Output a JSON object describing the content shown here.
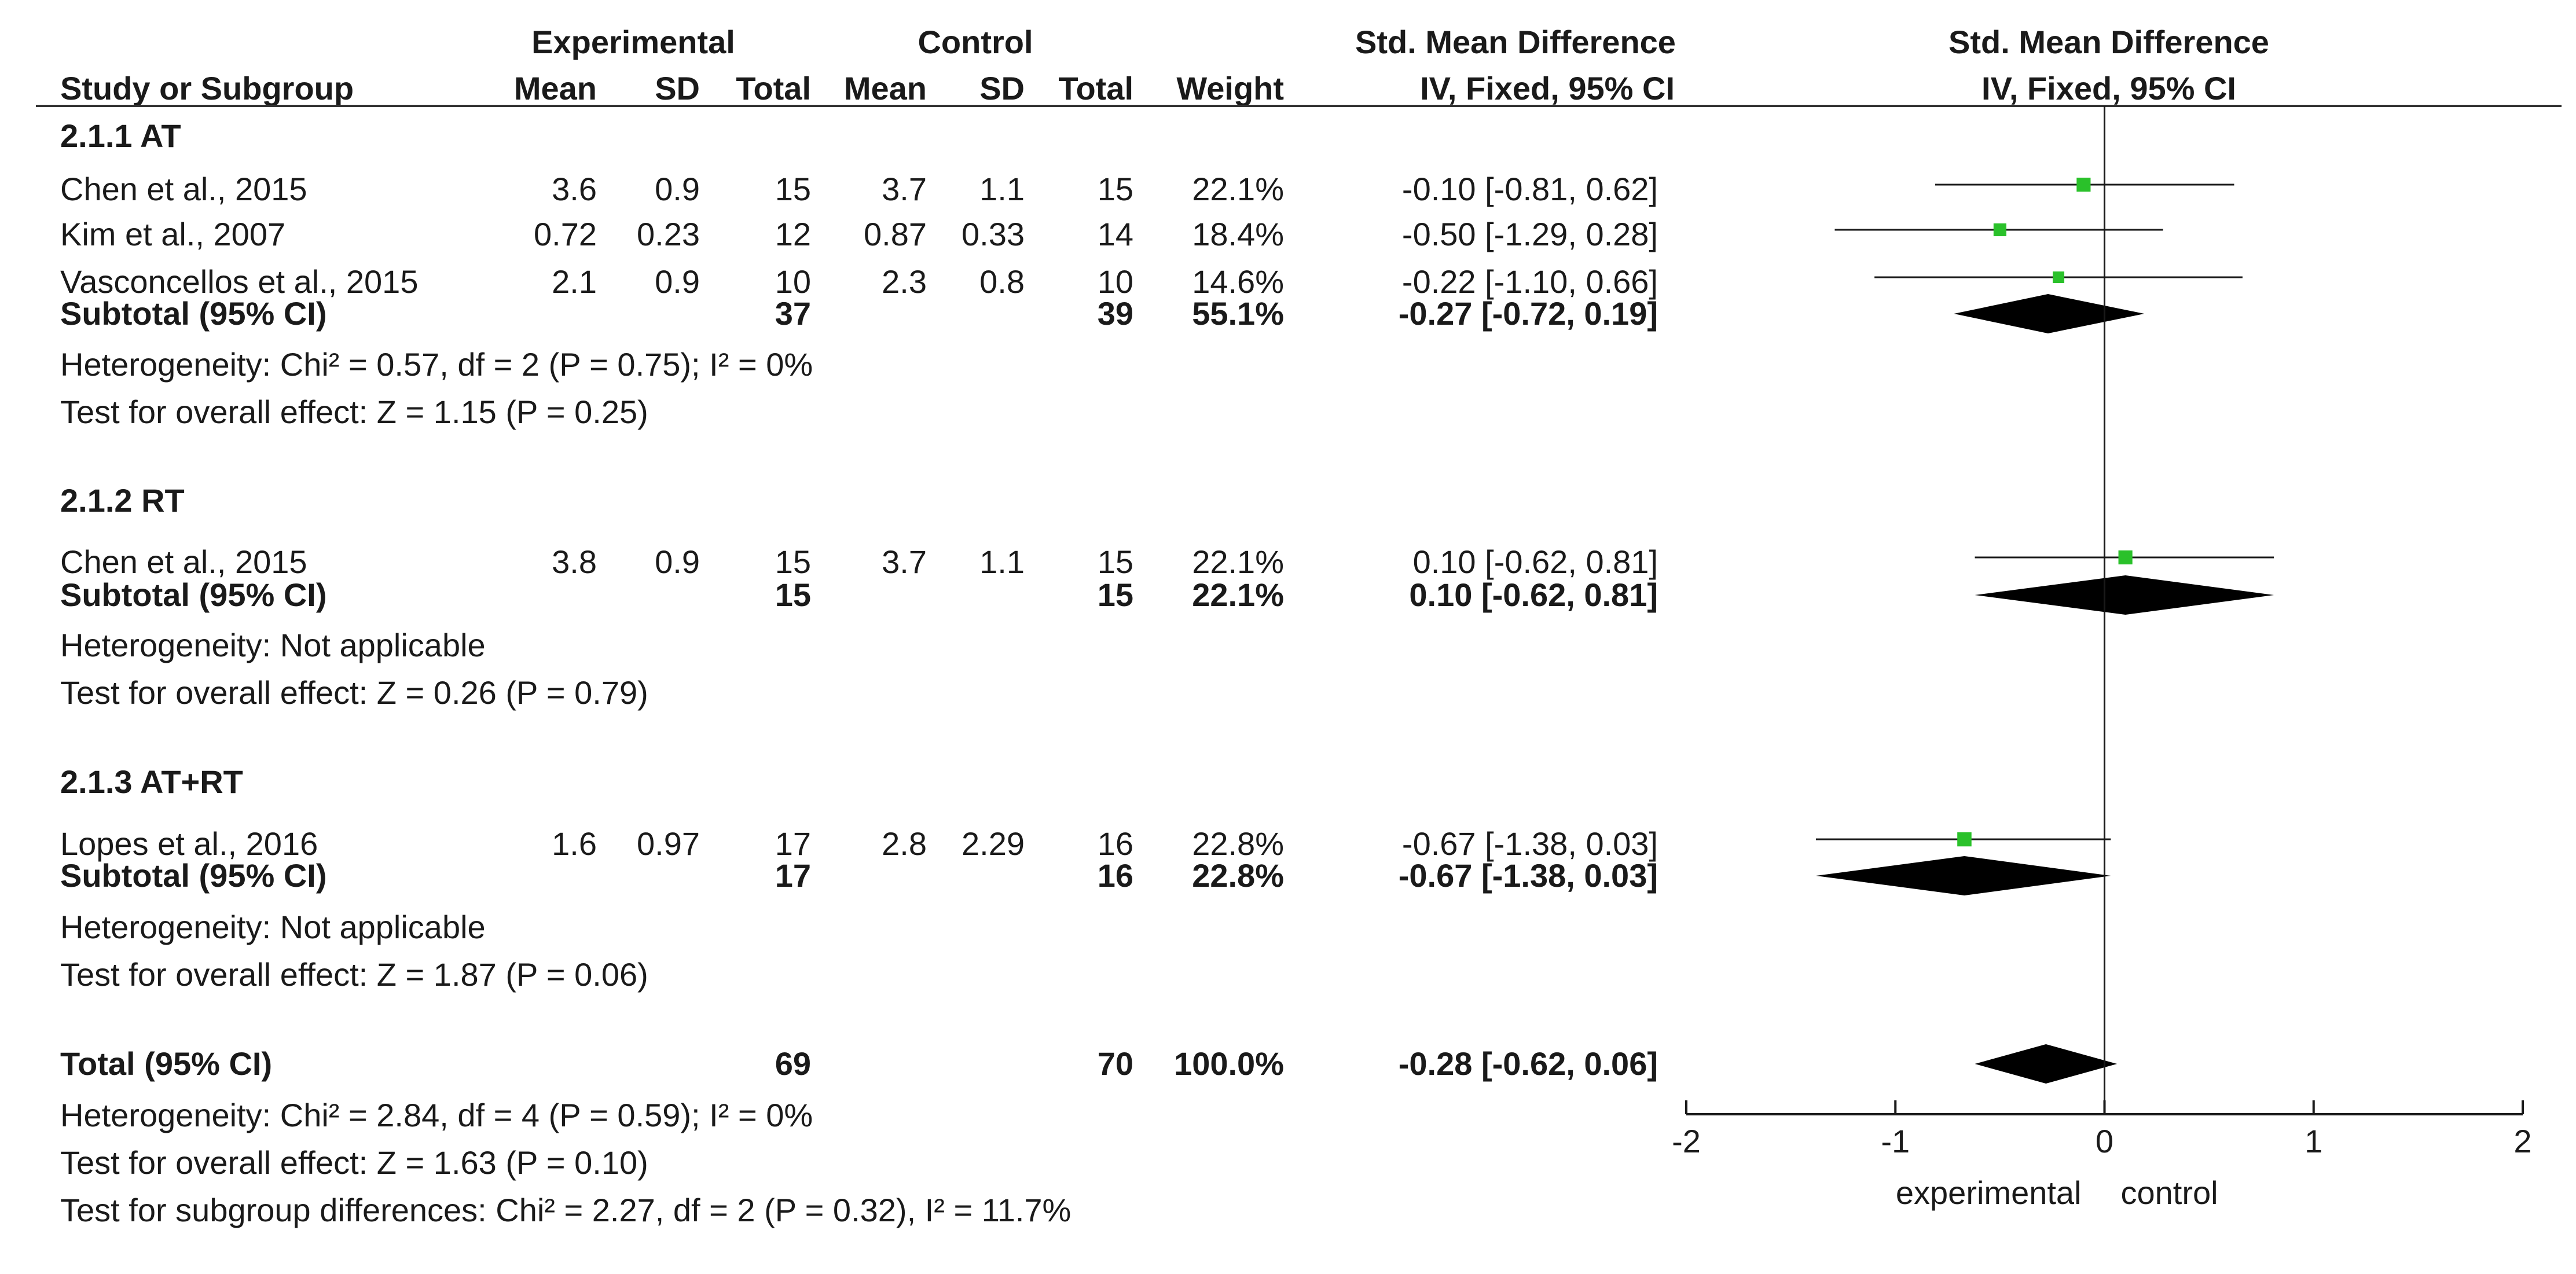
{
  "chart_data": {
    "type": "forest",
    "title": "",
    "header": {
      "experimental": "Experimental",
      "control": "Control",
      "smd_left": "Std. Mean Difference",
      "smd_right": "Std. Mean Difference",
      "method_left": "IV, Fixed, 95% CI",
      "method_right": "IV, Fixed, 95% CI",
      "study": "Study or Subgroup",
      "mean": "Mean",
      "sd": "SD",
      "total": "Total",
      "weight": "Weight"
    },
    "subgroups": [
      {
        "label": "2.1.1 AT",
        "studies": [
          {
            "study": "Chen et al., 2015",
            "exp_mean": "3.6",
            "exp_sd": "0.9",
            "exp_total": "15",
            "ctl_mean": "3.7",
            "ctl_sd": "1.1",
            "ctl_total": "15",
            "weight": "22.1%",
            "ci_text": "-0.10 [-0.81, 0.62]",
            "est": -0.1,
            "lo": -0.81,
            "hi": 0.62,
            "w": 22.1
          },
          {
            "study": "Kim et al., 2007",
            "exp_mean": "0.72",
            "exp_sd": "0.23",
            "exp_total": "12",
            "ctl_mean": "0.87",
            "ctl_sd": "0.33",
            "ctl_total": "14",
            "weight": "18.4%",
            "ci_text": "-0.50 [-1.29, 0.28]",
            "est": -0.5,
            "lo": -1.29,
            "hi": 0.28,
            "w": 18.4
          },
          {
            "study": "Vasconcellos et al., 2015",
            "exp_mean": "2.1",
            "exp_sd": "0.9",
            "exp_total": "10",
            "ctl_mean": "2.3",
            "ctl_sd": "0.8",
            "ctl_total": "10",
            "weight": "14.6%",
            "ci_text": "-0.22 [-1.10, 0.66]",
            "est": -0.22,
            "lo": -1.1,
            "hi": 0.66,
            "w": 14.6
          }
        ],
        "subtotal": {
          "label": "Subtotal (95% CI)",
          "exp_total": "37",
          "ctl_total": "39",
          "weight": "55.1%",
          "ci_text": "-0.27 [-0.72, 0.19]",
          "est": -0.27,
          "lo": -0.72,
          "hi": 0.19
        },
        "heterogeneity": "Heterogeneity: Chi² = 0.57, df = 2 (P = 0.75); I² = 0%",
        "overall": "Test for overall effect: Z = 1.15 (P = 0.25)"
      },
      {
        "label": "2.1.2 RT",
        "studies": [
          {
            "study": "Chen et al., 2015",
            "exp_mean": "3.8",
            "exp_sd": "0.9",
            "exp_total": "15",
            "ctl_mean": "3.7",
            "ctl_sd": "1.1",
            "ctl_total": "15",
            "weight": "22.1%",
            "ci_text": "0.10 [-0.62, 0.81]",
            "est": 0.1,
            "lo": -0.62,
            "hi": 0.81,
            "w": 22.1
          }
        ],
        "subtotal": {
          "label": "Subtotal (95% CI)",
          "exp_total": "15",
          "ctl_total": "15",
          "weight": "22.1%",
          "ci_text": "0.10 [-0.62, 0.81]",
          "est": 0.1,
          "lo": -0.62,
          "hi": 0.81
        },
        "heterogeneity": "Heterogeneity: Not applicable",
        "overall": "Test for overall effect: Z = 0.26 (P = 0.79)"
      },
      {
        "label": "2.1.3 AT+RT",
        "studies": [
          {
            "study": "Lopes et al., 2016",
            "exp_mean": "1.6",
            "exp_sd": "0.97",
            "exp_total": "17",
            "ctl_mean": "2.8",
            "ctl_sd": "2.29",
            "ctl_total": "16",
            "weight": "22.8%",
            "ci_text": "-0.67 [-1.38, 0.03]",
            "est": -0.67,
            "lo": -1.38,
            "hi": 0.03,
            "w": 22.8
          }
        ],
        "subtotal": {
          "label": "Subtotal (95% CI)",
          "exp_total": "17",
          "ctl_total": "16",
          "weight": "22.8%",
          "ci_text": "-0.67 [-1.38, 0.03]",
          "est": -0.67,
          "lo": -1.38,
          "hi": 0.03
        },
        "heterogeneity": "Heterogeneity: Not applicable",
        "overall": "Test for overall effect: Z = 1.87 (P = 0.06)"
      }
    ],
    "total": {
      "label": "Total (95% CI)",
      "exp_total": "69",
      "ctl_total": "70",
      "weight": "100.0%",
      "ci_text": "-0.28 [-0.62, 0.06]",
      "est": -0.28,
      "lo": -0.62,
      "hi": 0.06
    },
    "footer": [
      "Heterogeneity: Chi² = 2.84, df = 4 (P = 0.59); I² = 0%",
      "Test for overall effect: Z = 1.63 (P = 0.10)",
      "Test for subgroup differences: Chi² = 2.27, df = 2 (P = 0.32), I² = 11.7%"
    ],
    "xaxis": {
      "range": [
        -2,
        2
      ],
      "ticks": [
        -2,
        -1,
        0,
        1,
        2
      ],
      "tick_labels": [
        "-2",
        "-1",
        "0",
        "1",
        "2"
      ],
      "favours_left": "experimental",
      "favours_right": "control"
    },
    "colors": {
      "square": "#2ac12a",
      "diamond": "#000000",
      "line": "#1a1a1a"
    }
  }
}
